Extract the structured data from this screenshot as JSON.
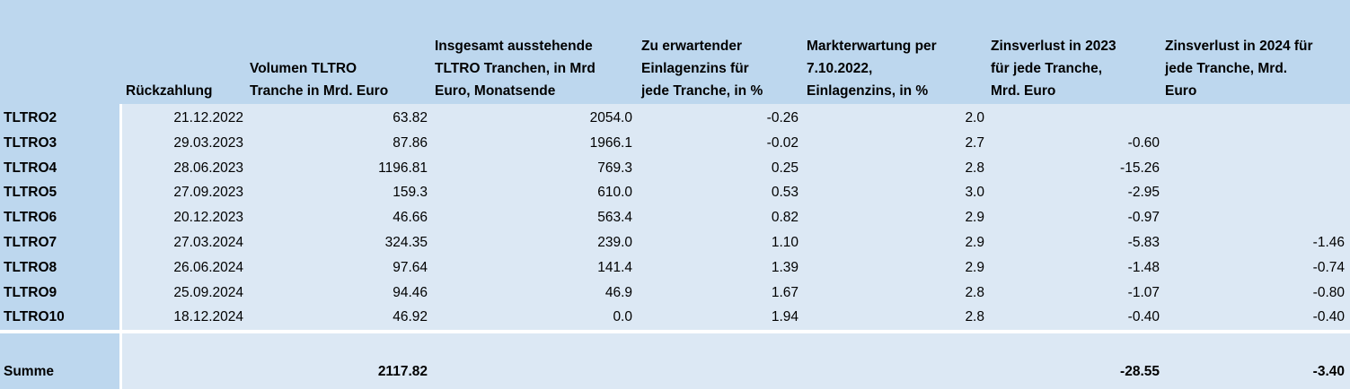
{
  "headers": [
    "Rückzahlung",
    "Volumen TLTRO Tranche in Mrd. Euro",
    "Insgesamt ausstehende TLTRO Tranchen,  in Mrd Euro, Monatsende",
    "Zu erwartender Einlagenzins für jede Tranche, in %",
    "Markterwartung per 7.10.2022, Einlagenzins, in %",
    "Zinsverlust in 2023 für jede Tranche, Mrd. Euro",
    "Zinsverlust in 2024 für jede Tranche, Mrd. Euro"
  ],
  "header_lines": [
    [
      "Rückzahlung"
    ],
    [
      "Volumen TLTRO",
      "Tranche in Mrd. Euro"
    ],
    [
      "Insgesamt ausstehende",
      "TLTRO Tranchen,  in Mrd",
      "Euro, Monatsende"
    ],
    [
      "Zu erwartender",
      "Einlagenzins für",
      "jede Tranche, in %"
    ],
    [
      "Markterwartung per",
      "7.10.2022,",
      "Einlagenzins, in %"
    ],
    [
      "Zinsverlust in 2023",
      "für jede Tranche,",
      "Mrd. Euro"
    ],
    [
      "Zinsverlust in 2024 für",
      "jede Tranche, Mrd.",
      "Euro"
    ]
  ],
  "rows": [
    {
      "name": "TLTRO2",
      "date": "21.12.2022",
      "volume": "63.82",
      "outstanding": "2054.0",
      "rate": "-0.26",
      "market": "2.0",
      "loss2023": "",
      "loss2024": ""
    },
    {
      "name": "TLTRO3",
      "date": "29.03.2023",
      "volume": "87.86",
      "outstanding": "1966.1",
      "rate": "-0.02",
      "market": "2.7",
      "loss2023": "-0.60",
      "loss2024": ""
    },
    {
      "name": "TLTRO4",
      "date": "28.06.2023",
      "volume": "1196.81",
      "outstanding": "769.3",
      "rate": "0.25",
      "market": "2.8",
      "loss2023": "-15.26",
      "loss2024": ""
    },
    {
      "name": "TLTRO5",
      "date": "27.09.2023",
      "volume": "159.3",
      "outstanding": "610.0",
      "rate": "0.53",
      "market": "3.0",
      "loss2023": "-2.95",
      "loss2024": ""
    },
    {
      "name": "TLTRO6",
      "date": "20.12.2023",
      "volume": "46.66",
      "outstanding": "563.4",
      "rate": "0.82",
      "market": "2.9",
      "loss2023": "-0.97",
      "loss2024": ""
    },
    {
      "name": "TLTRO7",
      "date": "27.03.2024",
      "volume": "324.35",
      "outstanding": "239.0",
      "rate": "1.10",
      "market": "2.9",
      "loss2023": "-5.83",
      "loss2024": "-1.46"
    },
    {
      "name": "TLTRO8",
      "date": "26.06.2024",
      "volume": "97.64",
      "outstanding": "141.4",
      "rate": "1.39",
      "market": "2.9",
      "loss2023": "-1.48",
      "loss2024": "-0.74"
    },
    {
      "name": "TLTRO9",
      "date": "25.09.2024",
      "volume": "94.46",
      "outstanding": "46.9",
      "rate": "1.67",
      "market": "2.8",
      "loss2023": "-1.07",
      "loss2024": "-0.80"
    },
    {
      "name": "TLTRO10",
      "date": "18.12.2024",
      "volume": "46.92",
      "outstanding": "0.0",
      "rate": "1.94",
      "market": "2.8",
      "loss2023": "-0.40",
      "loss2024": "-0.40"
    }
  ],
  "total": {
    "label": "Summe",
    "volume": "2117.82",
    "loss2023": "-28.55",
    "loss2024": "-3.40"
  },
  "colors": {
    "header_bg": "#bdd7ee",
    "body_bg": "#dce8f4",
    "separator": "#ffffff"
  }
}
